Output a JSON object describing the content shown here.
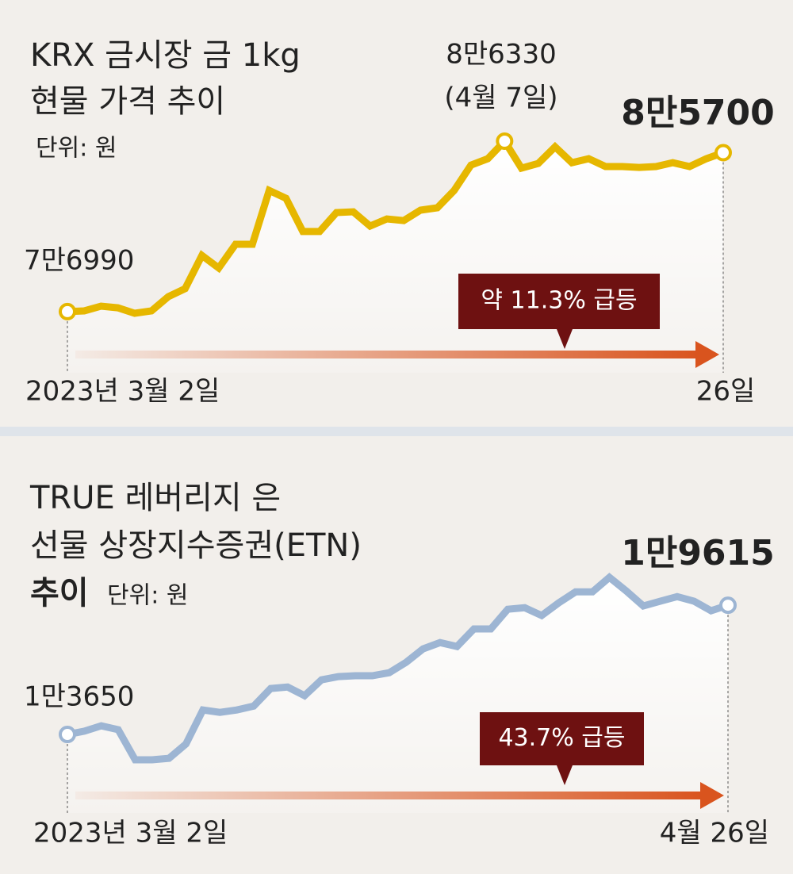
{
  "chart_data": [
    {
      "type": "line",
      "title": [
        "KRX 금시장 금 1kg",
        "현물 가격 추이"
      ],
      "unit": "단위: 원",
      "categories": [
        "2023년 3월 2일",
        null,
        null,
        null,
        null,
        null,
        null,
        null,
        null,
        null,
        null,
        null,
        null,
        null,
        null,
        null,
        null,
        null,
        null,
        null,
        null,
        null,
        null,
        null,
        null,
        null,
        null,
        null,
        null,
        null,
        null,
        null,
        null,
        null,
        null,
        null,
        null,
        null,
        null,
        "26일"
      ],
      "values": [
        76990,
        77030,
        77290,
        77200,
        76900,
        77030,
        77810,
        78250,
        80070,
        79380,
        80680,
        80680,
        83630,
        83200,
        81380,
        81380,
        82420,
        82460,
        81680,
        82070,
        81980,
        82550,
        82680,
        83630,
        85020,
        85370,
        86330,
        84850,
        85110,
        86020,
        85150,
        85370,
        84940,
        84940,
        84890,
        84940,
        85150,
        84940,
        85370,
        85700
      ],
      "value_labels": [
        "7만6990",
        null,
        null,
        null,
        null,
        null,
        null,
        null,
        null,
        null,
        null,
        null,
        null,
        null,
        null,
        null,
        null,
        null,
        null,
        null,
        null,
        null,
        null,
        null,
        null,
        null,
        "8만6330",
        null,
        null,
        null,
        null,
        null,
        null,
        null,
        null,
        null,
        null,
        null,
        null,
        "8만5700"
      ],
      "annotations": [
        "(4월 7일)",
        "약 11.3% 급등"
      ],
      "color": "#e6b700"
    },
    {
      "type": "line",
      "title": [
        "TRUE 레버리지 은",
        "선물 상장지수증권(ETN)",
        "추이"
      ],
      "unit": "단위: 원",
      "categories": [
        "2023년 3월 2일",
        null,
        null,
        null,
        null,
        null,
        null,
        null,
        null,
        null,
        null,
        null,
        null,
        null,
        null,
        null,
        null,
        null,
        null,
        null,
        null,
        null,
        null,
        null,
        null,
        null,
        null,
        null,
        null,
        null,
        null,
        null,
        null,
        null,
        null,
        null,
        null,
        null,
        null,
        "4월 26일"
      ],
      "values": [
        13650,
        13800,
        14050,
        13870,
        12480,
        12480,
        12550,
        13210,
        14780,
        14670,
        14780,
        14960,
        15770,
        15840,
        15440,
        16170,
        16320,
        16360,
        16360,
        16500,
        16980,
        17600,
        17890,
        17710,
        18520,
        18520,
        19430,
        19500,
        19140,
        19720,
        20230,
        20230,
        20900,
        20270,
        19580,
        19800,
        20010,
        19800,
        19360,
        19615
      ],
      "value_labels": [
        "1만3650",
        null,
        null,
        null,
        null,
        null,
        null,
        null,
        null,
        null,
        null,
        null,
        null,
        null,
        null,
        null,
        null,
        null,
        null,
        null,
        null,
        null,
        null,
        null,
        null,
        null,
        null,
        null,
        null,
        null,
        null,
        null,
        null,
        null,
        null,
        null,
        null,
        null,
        null,
        "1만9615"
      ],
      "annotations": [
        "43.7% 급등"
      ],
      "color": "#9db5d3"
    }
  ]
}
